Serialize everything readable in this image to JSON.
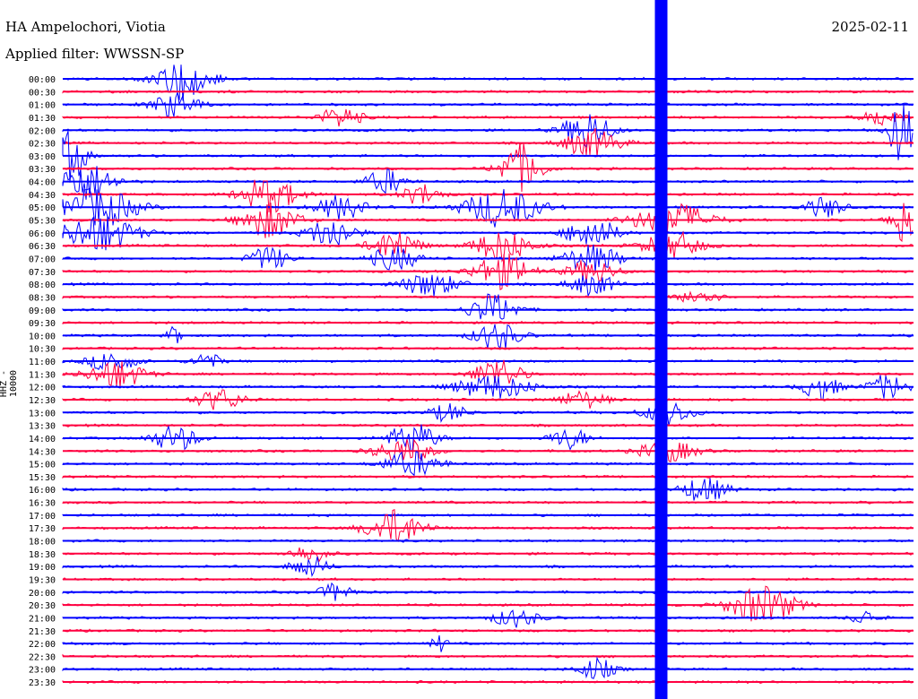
{
  "header": {
    "station": "HA Ampelochori, Viotia",
    "filter": "Applied filter: WWSSN-SP",
    "date": "2025-02-11"
  },
  "y_axis_label": "HHZ - 10000",
  "colors": {
    "trace_a": "#0000ff",
    "trace_b": "#ff0040",
    "text": "#000000"
  },
  "chart_data": {
    "type": "line",
    "title": "HA Ampelochori, Viotia",
    "subtitle": "Applied filter: WWSSN-SP",
    "ylabel": "HHZ - 10000",
    "rows": [
      "00:00",
      "00:30",
      "01:00",
      "01:30",
      "02:00",
      "02:30",
      "03:00",
      "03:30",
      "04:00",
      "04:30",
      "05:00",
      "05:30",
      "06:00",
      "06:30",
      "07:00",
      "07:30",
      "08:00",
      "08:30",
      "09:00",
      "09:30",
      "10:00",
      "10:30",
      "11:00",
      "11:30",
      "12:00",
      "12:30",
      "13:00",
      "13:30",
      "14:00",
      "14:30",
      "15:00",
      "15:30",
      "16:00",
      "16:30",
      "17:00",
      "17:30",
      "18:00",
      "18:30",
      "19:00",
      "19:30",
      "20:00",
      "20:30",
      "21:00",
      "21:30",
      "22:00",
      "22:30",
      "23:00",
      "23:30"
    ],
    "row_colors": [
      "trace_a",
      "trace_b"
    ],
    "minutes_per_row": 30,
    "wide_band_minute": 21.1
  }
}
